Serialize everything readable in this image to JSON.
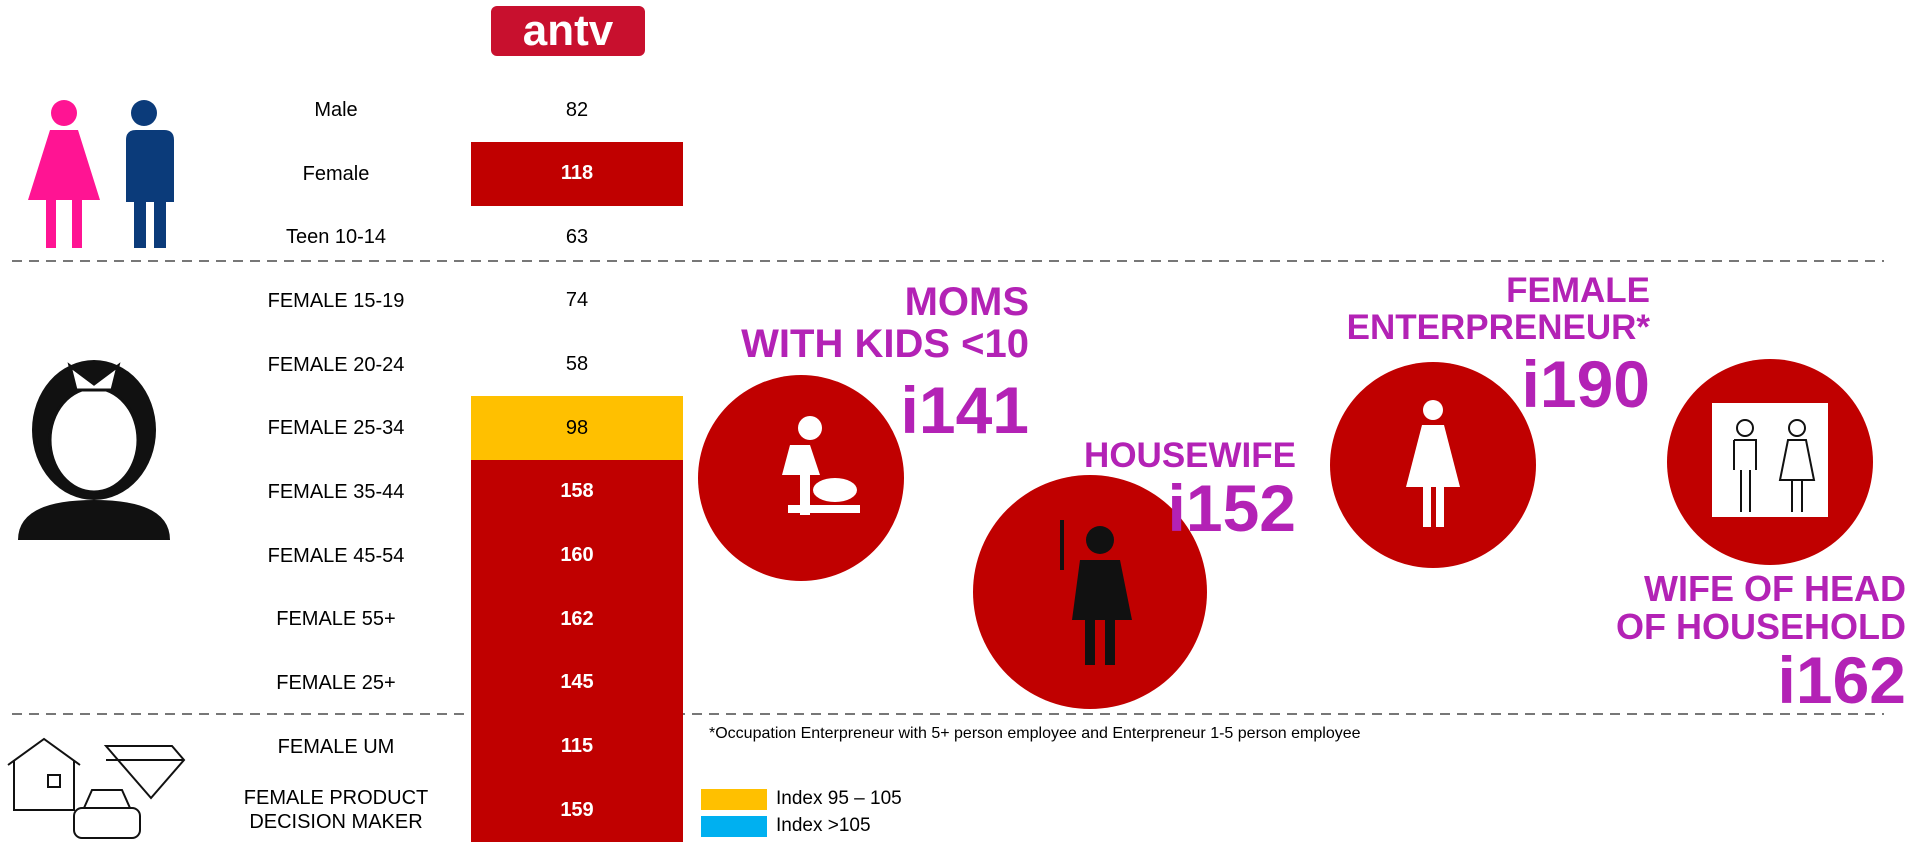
{
  "logo": "antv",
  "rows": [
    {
      "label": "Male",
      "value": "82"
    },
    {
      "label": "Female",
      "value": "118",
      "color": "#c00000"
    },
    {
      "label": "Teen 10-14",
      "value": "63"
    },
    {
      "label": "FEMALE 15-19",
      "value": "74"
    },
    {
      "label": "FEMALE 20-24",
      "value": "58"
    },
    {
      "label": "FEMALE 25-34",
      "value": "98",
      "color": "#ffc000"
    },
    {
      "label": "FEMALE 35-44",
      "value": "158",
      "color": "#c00000"
    },
    {
      "label": "FEMALE 45-54",
      "value": "160",
      "color": "#c00000"
    },
    {
      "label": "FEMALE 55+",
      "value": "162",
      "color": "#c00000"
    },
    {
      "label": "FEMALE 25+",
      "value": "145",
      "color": "#c00000"
    },
    {
      "label": "FEMALE UM",
      "value": "115",
      "color": "#c00000"
    },
    {
      "label": "FEMALE PRODUCT\nDECISION MAKER",
      "value": "159",
      "color": "#c00000"
    }
  ],
  "callouts": [
    {
      "title": "MOMS\nWITH KIDS <10",
      "index": "i141"
    },
    {
      "title": "HOUSEWIFE",
      "index": "i152"
    },
    {
      "title": "FEMALE\nENTERPRENEUR*",
      "index": "i190"
    },
    {
      "title": "WIFE OF HEAD\nOF HOUSEHOLD",
      "index": "i162"
    }
  ],
  "footnote": "*Occupation Enterpreneur with 5+ person employee and Enterpreneur 1-5 person employee",
  "legend": [
    {
      "label": "Index 95 – 105",
      "color": "#ffc000"
    },
    {
      "label": "Index >105",
      "color": "#00b0f0"
    }
  ]
}
